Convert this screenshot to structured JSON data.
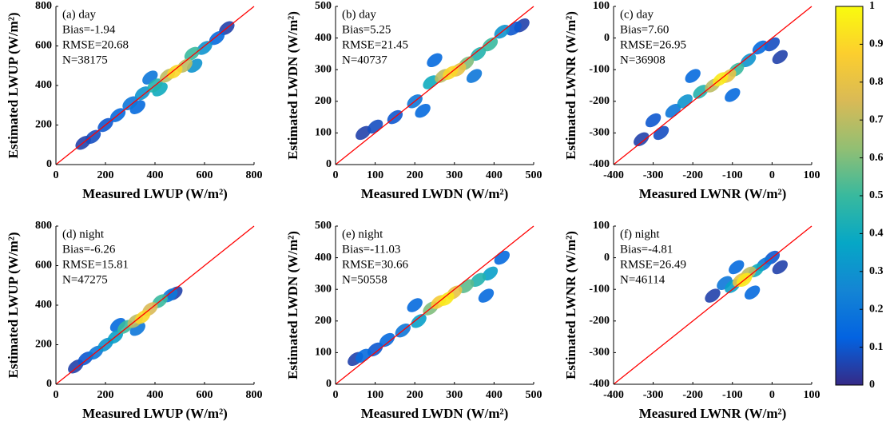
{
  "chart_data": [
    {
      "type": "scatter",
      "label": "(a) day",
      "stats": [
        "Bias=-1.94",
        "RMSE=20.68",
        "N=38175"
      ],
      "xlabel": "Measured LWUP (W/m²)",
      "ylabel": "Estimated LWUP (W/m²)",
      "xlim": [
        0,
        800
      ],
      "ylim": [
        0,
        800
      ],
      "xticks": [
        0,
        200,
        400,
        600,
        800
      ],
      "yticks": [
        0,
        200,
        400,
        600,
        800
      ],
      "x": [
        110,
        690,
        150,
        200,
        650,
        330,
        250,
        380,
        300,
        560,
        600,
        350,
        420,
        400,
        550,
        450,
        520,
        480
      ],
      "values": [
        110,
        690,
        140,
        200,
        640,
        290,
        250,
        440,
        310,
        500,
        590,
        360,
        380,
        400,
        560,
        450,
        500,
        470
      ],
      "density": [
        0.05,
        0.05,
        0.08,
        0.1,
        0.15,
        0.15,
        0.15,
        0.2,
        0.2,
        0.3,
        0.3,
        0.3,
        0.4,
        0.45,
        0.5,
        0.7,
        0.7,
        0.9
      ],
      "line_color": "#ff0000"
    },
    {
      "type": "scatter",
      "label": "(b) day",
      "stats": [
        "Bias=5.25",
        "RMSE=21.45",
        "N=40737"
      ],
      "xlabel": "Measured LWDN (W/m²)",
      "ylabel": "Estimated LWDN (W/m²)",
      "xlim": [
        0,
        500
      ],
      "ylim": [
        0,
        500
      ],
      "xticks": [
        0,
        100,
        200,
        300,
        400,
        500
      ],
      "yticks": [
        0,
        100,
        200,
        300,
        400,
        500
      ],
      "x": [
        70,
        470,
        100,
        150,
        450,
        220,
        250,
        200,
        350,
        420,
        240,
        360,
        390,
        330,
        270,
        310,
        290
      ],
      "values": [
        100,
        440,
        120,
        150,
        430,
        170,
        330,
        200,
        280,
        420,
        260,
        350,
        380,
        320,
        280,
        300,
        290
      ],
      "density": [
        0.05,
        0.05,
        0.08,
        0.1,
        0.1,
        0.15,
        0.15,
        0.2,
        0.2,
        0.3,
        0.4,
        0.45,
        0.5,
        0.6,
        0.7,
        0.8,
        0.9
      ],
      "line_color": "#ff0000"
    },
    {
      "type": "scatter",
      "label": "(c) day",
      "stats": [
        "Bias=7.60",
        "RMSE=26.95",
        "N=36908"
      ],
      "xlabel": "Measured LWNR (W/m²)",
      "ylabel": "Estimated LWNR (W/m²)",
      "xlim": [
        -400,
        100
      ],
      "ylim": [
        -400,
        100
      ],
      "xticks": [
        -400,
        -300,
        -200,
        -100,
        0,
        100
      ],
      "yticks": [
        -400,
        -300,
        -200,
        -100,
        0,
        100
      ],
      "x": [
        -330,
        20,
        -280,
        0,
        -300,
        -30,
        -200,
        -100,
        -250,
        -220,
        -60,
        -180,
        -90,
        -150,
        -110,
        -130
      ],
      "values": [
        -320,
        -60,
        -300,
        -20,
        -260,
        -30,
        -120,
        -180,
        -230,
        -200,
        -70,
        -170,
        -100,
        -150,
        -120,
        -130
      ],
      "density": [
        0.05,
        0.05,
        0.08,
        0.08,
        0.1,
        0.15,
        0.15,
        0.15,
        0.2,
        0.3,
        0.3,
        0.45,
        0.5,
        0.7,
        0.8,
        0.95
      ],
      "line_color": "#ff0000"
    },
    {
      "type": "scatter",
      "label": "(d) night",
      "stats": [
        "Bias=-6.26",
        "RMSE=15.81",
        "N=47275"
      ],
      "xlabel": "Measured LWUP (W/m²)",
      "ylabel": "Estimated LWUP (W/m²)",
      "xlim": [
        0,
        800
      ],
      "ylim": [
        0,
        800
      ],
      "xticks": [
        0,
        200,
        400,
        600,
        800
      ],
      "yticks": [
        0,
        200,
        400,
        600,
        800
      ],
      "x": [
        80,
        480,
        120,
        250,
        160,
        330,
        460,
        200,
        240,
        280,
        420,
        320,
        380,
        350
      ],
      "values": [
        90,
        460,
        130,
        300,
        160,
        280,
        450,
        200,
        240,
        290,
        420,
        320,
        380,
        340
      ],
      "density": [
        0.05,
        0.05,
        0.1,
        0.15,
        0.2,
        0.2,
        0.2,
        0.3,
        0.35,
        0.5,
        0.5,
        0.7,
        0.75,
        0.9
      ],
      "line_color": "#ff0000"
    },
    {
      "type": "scatter",
      "label": "(e) night",
      "stats": [
        "Bias=-11.03",
        "RMSE=30.66",
        "N=50558"
      ],
      "xlabel": "Measured LWDN (W/m²)",
      "ylabel": "Estimated LWDN (W/m²)",
      "xlim": [
        0,
        500
      ],
      "ylim": [
        0,
        500
      ],
      "xticks": [
        0,
        100,
        200,
        300,
        400,
        500
      ],
      "yticks": [
        0,
        100,
        200,
        300,
        400,
        500
      ],
      "x": [
        50,
        100,
        70,
        130,
        420,
        380,
        200,
        170,
        210,
        390,
        360,
        330,
        240,
        300,
        260,
        280
      ],
      "values": [
        80,
        110,
        90,
        140,
        400,
        280,
        250,
        170,
        200,
        350,
        330,
        310,
        240,
        290,
        260,
        270
      ],
      "density": [
        0.05,
        0.1,
        0.15,
        0.15,
        0.15,
        0.15,
        0.15,
        0.2,
        0.35,
        0.35,
        0.45,
        0.55,
        0.6,
        0.8,
        0.85,
        0.95
      ],
      "line_color": "#ff0000"
    },
    {
      "type": "scatter",
      "label": "(f) night",
      "stats": [
        "Bias=-4.81",
        "RMSE=26.49",
        "N=46114"
      ],
      "xlabel": "Measured LWNR (W/m²)",
      "ylabel": "Estimated LWNR (W/m²)",
      "xlim": [
        -400,
        100
      ],
      "ylim": [
        -400,
        100
      ],
      "xticks": [
        -400,
        -300,
        -200,
        -100,
        0,
        100
      ],
      "yticks": [
        -400,
        -300,
        -200,
        -100,
        0,
        100
      ],
      "x": [
        -150,
        20,
        0,
        -90,
        -50,
        -120,
        -20,
        -100,
        -40,
        -60,
        -80,
        -70
      ],
      "values": [
        -120,
        -30,
        0,
        -30,
        -110,
        -80,
        -20,
        -90,
        -40,
        -50,
        -70,
        -70
      ],
      "density": [
        0.05,
        0.05,
        0.1,
        0.15,
        0.15,
        0.2,
        0.2,
        0.35,
        0.4,
        0.7,
        0.8,
        0.95
      ],
      "line_color": "#ff0000"
    }
  ],
  "colorbar": {
    "lim": [
      0,
      1
    ],
    "ticks": [
      0,
      0.1,
      0.2,
      0.3,
      0.4,
      0.5,
      0.6,
      0.7,
      0.8,
      0.9,
      1
    ],
    "colors": [
      "#352a87",
      "#0363e1",
      "#1485d4",
      "#06a7c6",
      "#38b99e",
      "#92bf73",
      "#d9ba56",
      "#fcce2e",
      "#f9fb0e"
    ]
  }
}
